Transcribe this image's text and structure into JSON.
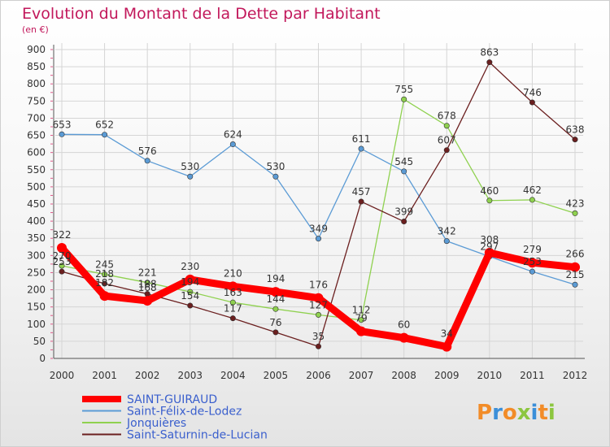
{
  "title": "Evolution du Montant de la Dette par Habitant",
  "subtitle": "(en €)",
  "logo": "Proxiti",
  "chart_data": {
    "type": "line",
    "title": "Evolution du Montant de la Dette par Habitant",
    "ylabel": "(en €)",
    "x": [
      "2000",
      "2001",
      "2002",
      "2003",
      "2004",
      "2005",
      "2006",
      "2007",
      "2008",
      "2009",
      "2010",
      "2011",
      "2012"
    ],
    "ylim": [
      0,
      900
    ],
    "yticks": [
      0,
      50,
      100,
      150,
      200,
      250,
      300,
      350,
      400,
      450,
      500,
      550,
      600,
      650,
      700,
      750,
      800,
      850,
      900
    ],
    "grid": true,
    "legend_position": "bottom-left",
    "series": [
      {
        "name": "SAINT-GUIRAUD",
        "color": "#ff0000",
        "bold": true,
        "values": [
          322,
          182,
          168,
          230,
          210,
          194,
          176,
          79,
          60,
          34,
          308,
          279,
          266
        ],
        "labels": [
          "322",
          "182",
          "168",
          "230",
          "210",
          "194",
          "176",
          "79",
          "60",
          "34",
          "308",
          "279",
          "266"
        ]
      },
      {
        "name": "Saint-Félix-de-Lodez",
        "color": "#5b9bd5",
        "values": [
          653,
          652,
          576,
          530,
          624,
          530,
          349,
          611,
          545,
          342,
          297,
          253,
          215
        ],
        "labels": [
          "653",
          "652",
          "576",
          "530",
          "624",
          "530",
          "349",
          "611",
          "545",
          "342",
          "297",
          "253",
          "215"
        ]
      },
      {
        "name": "Jonquières",
        "color": "#8fd14f",
        "values": [
          270,
          245,
          221,
          194,
          163,
          144,
          127,
          112,
          755,
          678,
          460,
          462,
          423
        ],
        "labels": [
          "270",
          "245",
          "221",
          "194",
          "163",
          "144",
          "127",
          "112",
          "755",
          "678",
          "460",
          "462",
          "423"
        ]
      },
      {
        "name": "Saint-Saturnin-de-Lucian",
        "color": "#6b1f1f",
        "values": [
          253,
          218,
          188,
          154,
          117,
          76,
          35,
          457,
          399,
          607,
          863,
          746,
          638
        ],
        "labels": [
          "253",
          "218",
          "188",
          "154",
          "117",
          "76",
          "35",
          "457",
          "399",
          "607",
          "863",
          "746",
          "638"
        ]
      }
    ]
  }
}
